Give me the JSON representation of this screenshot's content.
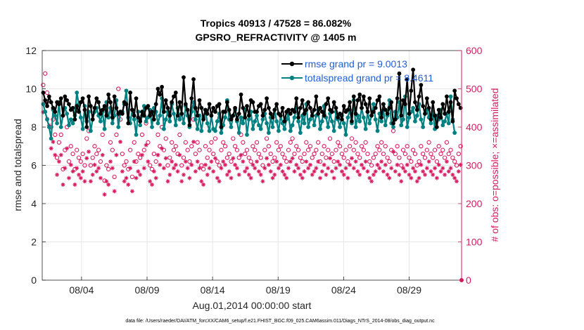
{
  "chart_data": {
    "type": "line",
    "title": "Tropics 40913 / 47528 = 86.082%",
    "subtitle": "GPSRO_REFRACTIVITY @ 1405 m",
    "xlabel": "Aug.01,2014 00:00:00 start",
    "ylabel": "rmse and totalspread",
    "ylabel_right": "# of obs: o=possible; ×=assimilated",
    "x_tick_labels": [
      "08/04",
      "08/09",
      "08/14",
      "08/19",
      "08/24",
      "08/29"
    ],
    "x_tick_days": [
      4,
      9,
      14,
      19,
      24,
      29
    ],
    "xlim": [
      1,
      33
    ],
    "ylim": [
      0,
      12
    ],
    "ylim_right": [
      0,
      600
    ],
    "y_ticks": [
      0,
      2,
      4,
      6,
      8,
      10,
      12
    ],
    "y_ticks_right": [
      0,
      100,
      200,
      300,
      400,
      500,
      600
    ],
    "legend_position": "top-right",
    "footer": "data file: /Users/raeder/DAI/ATM_forcXX/CAM6_setup/f.e21.FHIST_BGC.f09_025.CAM6assim.011/Diags_NTrS_2014-08/obs_diag_output.nc",
    "colors": {
      "rmse": "#000000",
      "spread": "#008080",
      "obs": "#d81b60"
    },
    "series": [
      {
        "name": "rmse grand pr = 9.0013",
        "values": [
          9.8,
          9.4,
          9.1,
          9.6,
          9.3,
          9.0,
          8.8,
          9.3,
          9.2,
          9.5,
          8.6,
          9.6,
          9.4,
          9.2,
          8.9,
          9.0,
          8.4,
          9.1,
          8.8,
          9.3,
          9.5,
          8.9,
          8.0,
          9.6,
          9.1,
          8.4,
          9.0,
          9.5,
          9.3,
          8.7,
          8.9,
          9.1,
          8.6,
          9.7,
          9.3,
          8.5,
          9.6,
          9.0,
          8.7,
          8.8,
          8.7,
          9.3,
          9.2,
          8.2,
          9.8,
          8.9,
          8.6,
          9.5,
          8.5,
          8.3,
          8.8,
          8.6,
          9.0,
          9.1,
          8.6,
          8.8,
          8.4,
          9.2,
          10.0,
          9.7,
          10.1,
          8.8,
          9.4,
          9.0,
          8.6,
          9.3,
          9.6,
          9.8,
          8.6,
          9.3,
          8.7,
          10.6,
          9.2,
          8.9,
          8.1,
          9.5,
          10.5,
          9.0,
          8.6,
          9.4,
          9.0,
          8.4,
          8.9,
          8.7,
          9.2,
          8.6,
          9.0,
          8.8,
          9.1,
          9.2,
          8.0,
          8.8,
          8.8,
          9.3,
          8.9,
          8.4,
          8.6,
          9.0,
          8.4,
          8.7,
          9.7,
          9.0,
          8.5,
          9.1,
          8.6,
          9.4,
          9.3,
          8.8,
          8.8,
          9.1,
          9.2,
          8.6,
          8.9,
          9.5,
          9.0,
          8.7,
          8.5,
          8.9,
          9.2,
          8.7,
          8.6,
          9.0,
          8.3,
          8.8,
          8.9,
          8.7,
          8.9,
          8.8,
          9.5,
          8.5,
          9.0,
          9.4,
          8.7,
          8.9,
          9.3,
          9.0,
          8.6,
          8.9,
          9.6,
          8.7,
          9.0,
          8.8,
          8.6,
          9.2,
          9.5,
          8.9,
          8.8,
          9.3,
          9.0,
          8.5,
          8.7,
          8.4,
          9.1,
          8.8,
          8.9,
          9.3,
          8.3,
          9.6,
          8.7,
          9.4,
          9.7,
          9.0,
          9.6,
          9.2,
          8.8,
          9.5,
          8.6,
          8.8,
          9.0,
          9.4,
          9.6,
          8.5,
          9.2,
          8.9,
          8.7,
          9.0,
          9.3,
          8.2,
          8.4,
          9.5,
          10.8,
          8.6,
          9.4,
          9.2,
          10.5,
          8.7,
          9.9,
          11.0,
          9.3,
          8.9,
          9.6,
          10.2,
          9.1,
          8.7,
          9.5,
          9.0,
          8.4,
          9.3,
          8.6,
          8.0,
          8.9,
          8.5,
          9.2,
          8.7,
          9.6,
          8.8,
          9.3,
          8.3,
          9.9,
          9.5,
          9.2,
          9.0
        ]
      },
      {
        "name": "totalspread grand pr = 8.4611",
        "values": [
          9.2,
          8.8,
          8.4,
          8.0,
          7.4,
          8.9,
          8.6,
          8.2,
          9.3,
          8.0,
          8.6,
          9.0,
          8.7,
          8.1,
          8.4,
          8.2,
          8.6,
          9.8,
          9.2,
          8.5,
          7.9,
          9.1,
          8.3,
          8.8,
          7.8,
          8.4,
          8.8,
          9.0,
          8.6,
          8.3,
          8.8,
          7.9,
          9.3,
          8.5,
          9.0,
          8.2,
          8.6,
          9.4,
          8.0,
          8.7,
          8.8,
          9.2,
          9.9,
          8.5,
          8.2,
          8.9,
          8.4,
          7.6,
          8.8,
          8.1,
          8.6,
          9.1,
          8.3,
          8.5,
          8.9,
          8.0,
          9.0,
          8.8,
          8.2,
          8.6,
          9.5,
          7.9,
          8.4,
          8.8,
          8.3,
          9.2,
          8.7,
          8.1,
          9.0,
          8.4,
          8.7,
          8.2,
          9.1,
          8.6,
          8.0,
          8.8,
          9.3,
          8.4,
          7.9,
          8.6,
          7.8,
          8.5,
          8.9,
          8.2,
          7.8,
          8.6,
          7.9,
          7.8,
          8.3,
          8.7,
          7.7,
          8.1,
          8.5,
          9.4,
          8.4,
          8.0,
          8.6,
          8.9,
          8.3,
          7.7,
          8.5,
          8.2,
          8.9,
          7.6,
          8.4,
          8.8,
          7.9,
          8.3,
          8.6,
          8.1,
          7.9,
          8.4,
          8.7,
          8.2,
          7.7,
          8.5,
          8.0,
          8.9,
          8.3,
          7.8,
          8.6,
          8.2,
          7.9,
          8.4,
          8.7,
          7.8,
          8.1,
          8.5,
          9.0,
          8.3,
          7.7,
          8.6,
          8.2,
          9.2,
          8.0,
          8.4,
          8.8,
          8.1,
          8.6,
          8.9,
          7.9,
          8.3,
          9.1,
          8.5,
          8.0,
          8.7,
          8.3,
          7.8,
          8.8,
          8.4,
          8.0,
          8.6,
          8.2,
          7.6,
          8.5,
          8.9,
          8.2,
          9.4,
          8.0,
          8.6,
          8.3,
          9.0,
          8.5,
          7.9,
          8.8,
          8.2,
          8.6,
          9.2,
          8.4,
          7.8,
          8.7,
          8.3,
          8.9,
          8.1,
          8.6,
          9.4,
          8.2,
          8.0,
          8.8,
          8.5,
          9.3,
          8.1,
          8.4,
          9.6,
          8.0,
          8.5,
          8.8,
          9.0,
          8.3,
          8.6,
          9.2,
          8.4,
          8.0,
          8.7,
          8.9,
          8.5,
          8.2,
          8.8,
          7.9,
          8.6,
          8.4,
          8.9,
          8.1,
          8.3,
          8.7,
          8.2,
          9.6,
          8.4,
          7.7
        ]
      },
      {
        "name": "possible",
        "marker": "o",
        "values": [
          510,
          540,
          490,
          470,
          400,
          420,
          380,
          320,
          360,
          380,
          290,
          340,
          400,
          310,
          350,
          330,
          290,
          340,
          320,
          310,
          330,
          300,
          370,
          390,
          300,
          320,
          350,
          330,
          340,
          310,
          380,
          260,
          300,
          290,
          360,
          340,
          270,
          380,
          500,
          420,
          330,
          300,
          310,
          290,
          340,
          270,
          360,
          310,
          330,
          320,
          380,
          340,
          410,
          360,
          300,
          290,
          330,
          310,
          380,
          350,
          400,
          340,
          370,
          300,
          320,
          360,
          340,
          350,
          330,
          380,
          300,
          320,
          360,
          340,
          310,
          350,
          420,
          330,
          360,
          340,
          300,
          290,
          350,
          320,
          340,
          360,
          330,
          370,
          310,
          300,
          340,
          360,
          350,
          320,
          330,
          310,
          370,
          350,
          340,
          320,
          380,
          360,
          330,
          340,
          320,
          310,
          350,
          340,
          360,
          330,
          320,
          300,
          340,
          370,
          350,
          330,
          310,
          320,
          360,
          340,
          350,
          330,
          320,
          310,
          340,
          360,
          370,
          330,
          350,
          340,
          320,
          310,
          330,
          360,
          340,
          350,
          320,
          330,
          340,
          360,
          310,
          330,
          350,
          320,
          340,
          370,
          330,
          310,
          340,
          360,
          350,
          330,
          320,
          340,
          310,
          350,
          370,
          340,
          360,
          330,
          320,
          350,
          340,
          360,
          330,
          310,
          300,
          320,
          330,
          350,
          340,
          360,
          330,
          350,
          320,
          310,
          340,
          390,
          330,
          350,
          320,
          300,
          340,
          330,
          350,
          320,
          310,
          340,
          330,
          300,
          310,
          350,
          330,
          320,
          340,
          360,
          330,
          320,
          340,
          310,
          350,
          330,
          340,
          320,
          360,
          330,
          340,
          320,
          310,
          300,
          330,
          350
        ]
      }
    ]
  }
}
